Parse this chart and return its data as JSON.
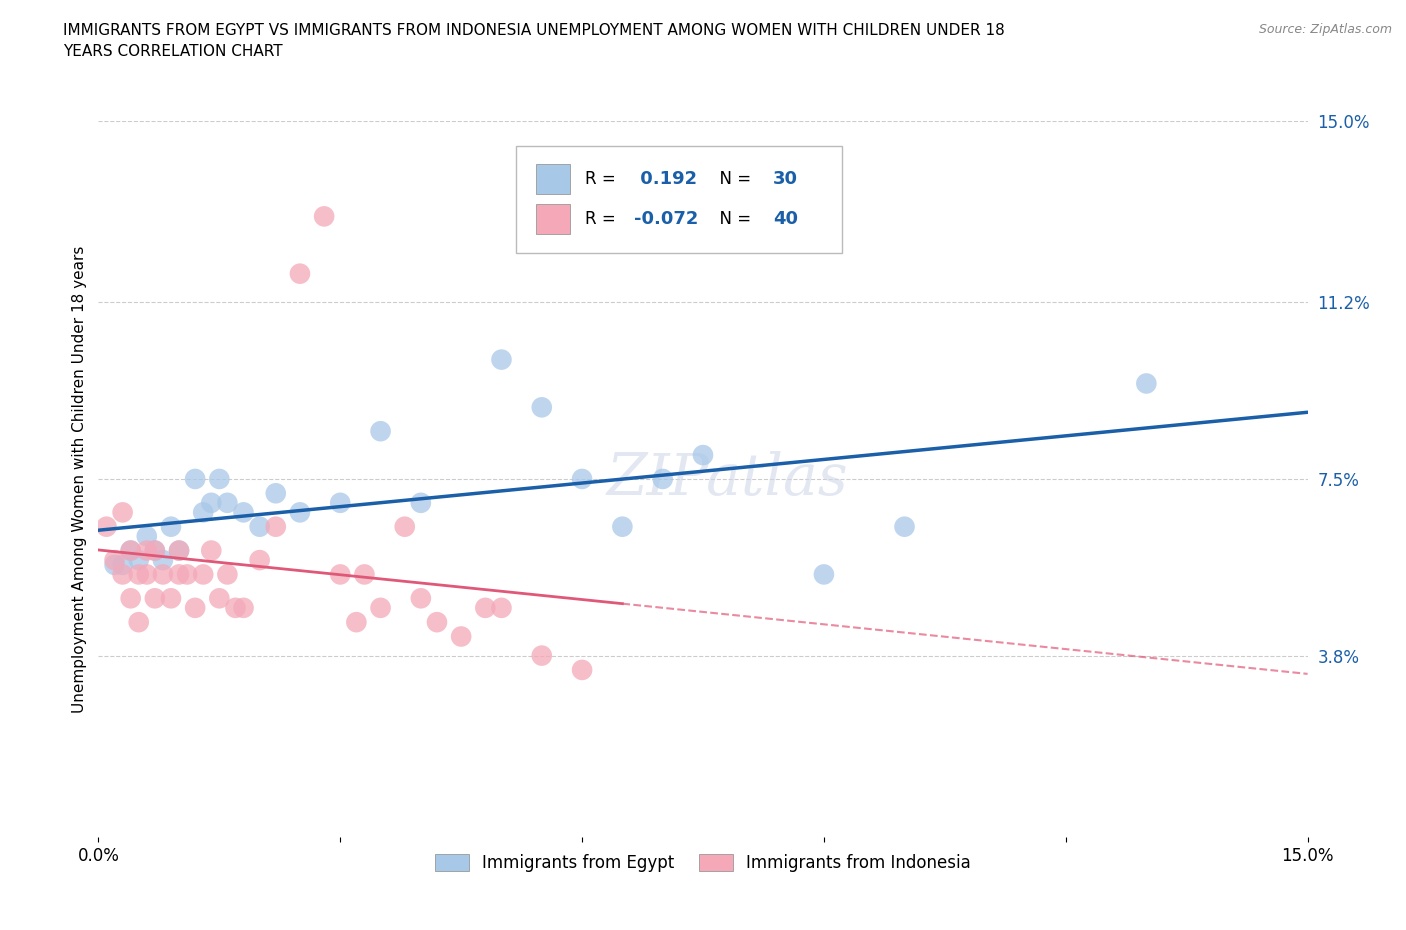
{
  "title": "IMMIGRANTS FROM EGYPT VS IMMIGRANTS FROM INDONESIA UNEMPLOYMENT AMONG WOMEN WITH CHILDREN UNDER 18\nYEARS CORRELATION CHART",
  "source": "Source: ZipAtlas.com",
  "ylabel": "Unemployment Among Women with Children Under 18 years",
  "xlim": [
    0,
    0.15
  ],
  "ylim": [
    0,
    0.15
  ],
  "xtick_vals": [
    0.0,
    0.03,
    0.06,
    0.09,
    0.12,
    0.15
  ],
  "xtick_labels": [
    "0.0%",
    "",
    "",
    "",
    "",
    "15.0%"
  ],
  "ytick_labels_right": [
    "3.8%",
    "7.5%",
    "11.2%",
    "15.0%"
  ],
  "ytick_vals_right": [
    0.038,
    0.075,
    0.112,
    0.15
  ],
  "egypt_R": 0.192,
  "egypt_N": 30,
  "indonesia_R": -0.072,
  "indonesia_N": 40,
  "egypt_color": "#a8c8e8",
  "indonesia_color": "#f4a8b8",
  "egypt_line_color": "#1a5fa8",
  "indonesia_line_color": "#e05878",
  "watermark": "ZIPatlas",
  "egypt_x": [
    0.002,
    0.003,
    0.004,
    0.005,
    0.006,
    0.007,
    0.008,
    0.009,
    0.01,
    0.012,
    0.013,
    0.014,
    0.015,
    0.016,
    0.018,
    0.02,
    0.022,
    0.025,
    0.03,
    0.035,
    0.04,
    0.05,
    0.055,
    0.06,
    0.065,
    0.07,
    0.075,
    0.09,
    0.1,
    0.13
  ],
  "egypt_y": [
    0.057,
    0.057,
    0.06,
    0.058,
    0.063,
    0.06,
    0.058,
    0.065,
    0.06,
    0.075,
    0.068,
    0.07,
    0.075,
    0.07,
    0.068,
    0.065,
    0.072,
    0.068,
    0.07,
    0.085,
    0.07,
    0.1,
    0.09,
    0.075,
    0.065,
    0.075,
    0.08,
    0.055,
    0.065,
    0.095
  ],
  "indonesia_x": [
    0.001,
    0.002,
    0.003,
    0.003,
    0.004,
    0.004,
    0.005,
    0.005,
    0.006,
    0.006,
    0.007,
    0.007,
    0.008,
    0.009,
    0.01,
    0.01,
    0.011,
    0.012,
    0.013,
    0.014,
    0.015,
    0.016,
    0.017,
    0.018,
    0.02,
    0.022,
    0.025,
    0.028,
    0.03,
    0.032,
    0.033,
    0.035,
    0.038,
    0.04,
    0.042,
    0.045,
    0.048,
    0.05,
    0.055,
    0.06
  ],
  "indonesia_y": [
    0.065,
    0.058,
    0.055,
    0.068,
    0.05,
    0.06,
    0.045,
    0.055,
    0.055,
    0.06,
    0.05,
    0.06,
    0.055,
    0.05,
    0.055,
    0.06,
    0.055,
    0.048,
    0.055,
    0.06,
    0.05,
    0.055,
    0.048,
    0.048,
    0.058,
    0.065,
    0.118,
    0.13,
    0.055,
    0.045,
    0.055,
    0.048,
    0.065,
    0.05,
    0.045,
    0.042,
    0.048,
    0.048,
    0.038,
    0.035
  ],
  "grid_color": "#cccccc",
  "bg_color": "#ffffff"
}
